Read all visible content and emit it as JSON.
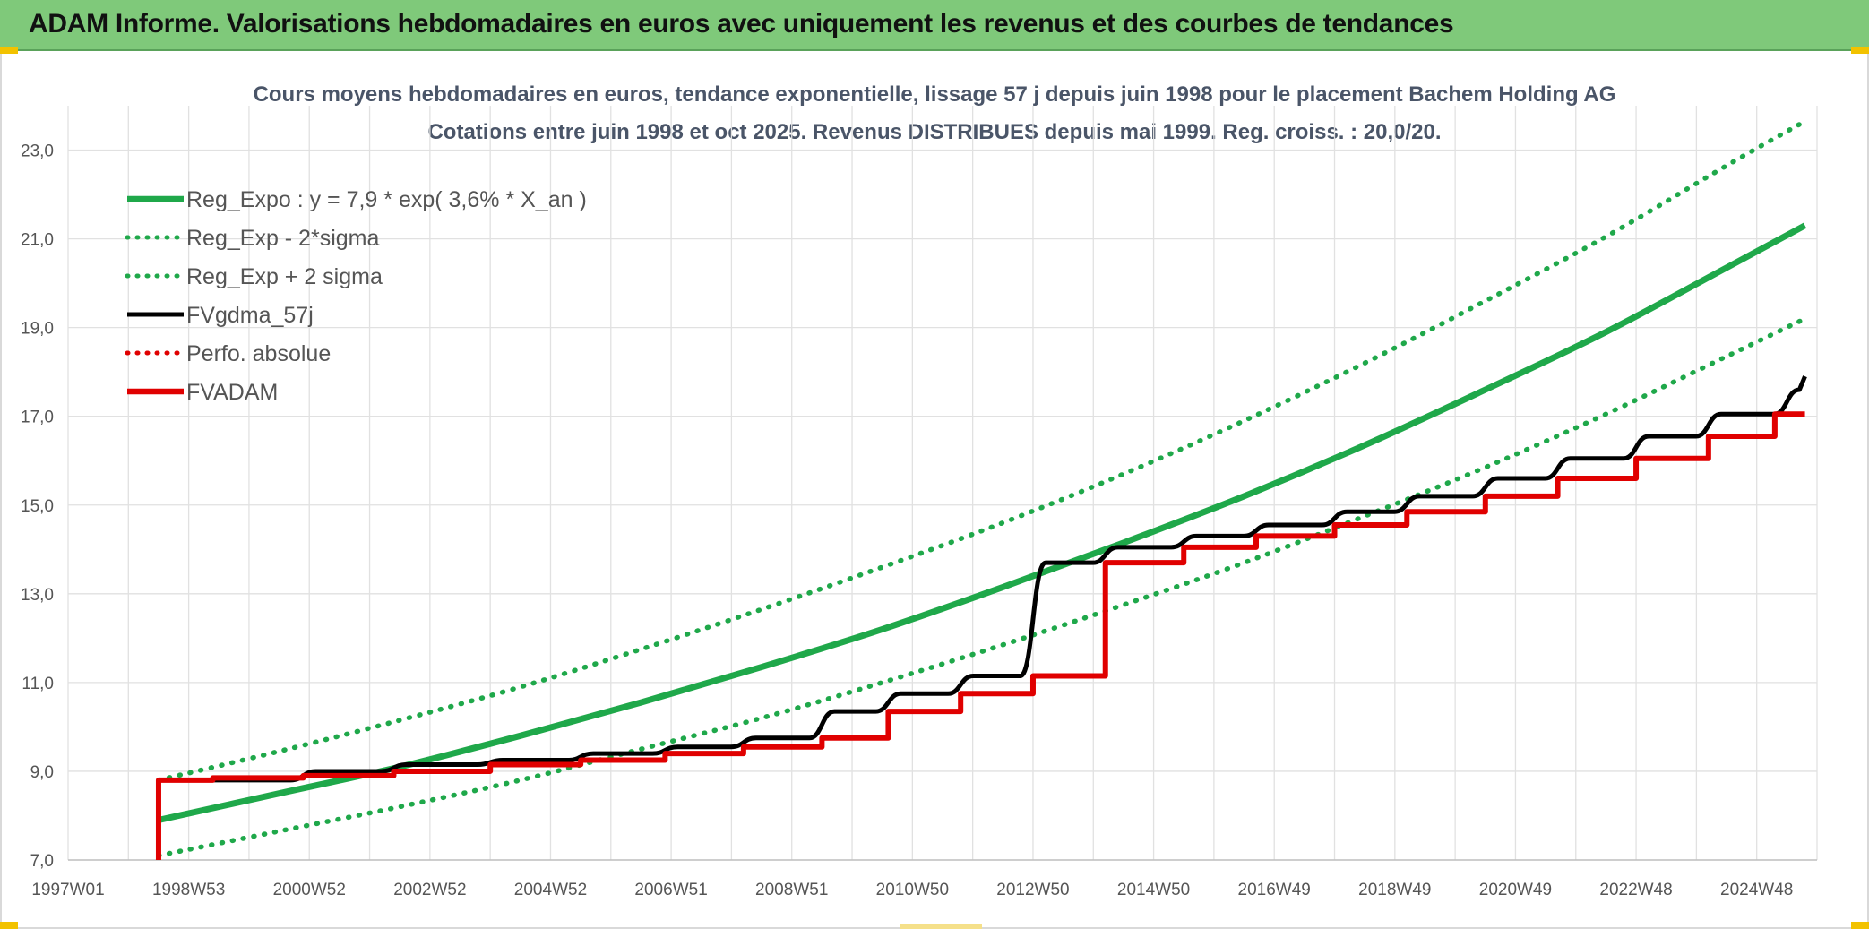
{
  "banner": {
    "title": "ADAM Informe. Valorisations hebdomadaires en euros avec uniquement les revenus et des courbes de tendances"
  },
  "chart_data": {
    "type": "line",
    "title": "Cours moyens hebdomadaires en euros, tendance exponentielle, lissage 57 j depuis juin 1998 pour le placement Bachem Holding AG",
    "subtitle": "Cotations entre juin 1998 et oct 2025. Revenus DISTRIBUES depuis mai 1999. Reg. croiss. : 20,0/20.",
    "xlabel": "",
    "ylabel": "",
    "x_range": [
      1997.0,
      2026.0
    ],
    "ylim": [
      7.0,
      24.0
    ],
    "y_ticks": [
      "7,0",
      "9,0",
      "11,0",
      "13,0",
      "15,0",
      "17,0",
      "19,0",
      "21,0",
      "23,0"
    ],
    "x_ticks": [
      {
        "label": "1997W01",
        "x": 1997.0
      },
      {
        "label": "1998W53",
        "x": 1999.0
      },
      {
        "label": "2000W52",
        "x": 2001.0
      },
      {
        "label": "2002W52",
        "x": 2003.0
      },
      {
        "label": "2004W52",
        "x": 2005.0
      },
      {
        "label": "2006W51",
        "x": 2007.0
      },
      {
        "label": "2008W51",
        "x": 2009.0
      },
      {
        "label": "2010W50",
        "x": 2011.0
      },
      {
        "label": "2012W50",
        "x": 2013.0
      },
      {
        "label": "2014W50",
        "x": 2015.0
      },
      {
        "label": "2016W49",
        "x": 2017.0
      },
      {
        "label": "2018W49",
        "x": 2019.0
      },
      {
        "label": "2020W49",
        "x": 2021.0
      },
      {
        "label": "2022W48",
        "x": 2023.0
      },
      {
        "label": "2024W48",
        "x": 2025.0
      }
    ],
    "grid": true,
    "legend_position": "top-left",
    "series": [
      {
        "name": "Reg_Expo : y = 7,9 * exp( 3,6% *  X_an )",
        "color": "#1fa84a",
        "style": "solid",
        "x": [
          1998.5,
          2000.5,
          2002.5,
          2004.5,
          2006.5,
          2008.5,
          2010.5,
          2012.5,
          2014.5,
          2016.5,
          2018.5,
          2020.5,
          2022.5,
          2024.5,
          2025.8
        ],
        "y": [
          7.9,
          8.5,
          9.1,
          9.8,
          10.55,
          11.35,
          12.2,
          13.15,
          14.15,
          15.2,
          16.35,
          17.6,
          18.9,
          20.35,
          21.3
        ]
      },
      {
        "name": "Reg_Exp - 2*sigma",
        "color": "#1fa84a",
        "style": "dotted",
        "x": [
          1998.5,
          2000.5,
          2002.5,
          2004.5,
          2006.5,
          2008.5,
          2010.5,
          2012.5,
          2014.5,
          2016.5,
          2018.5,
          2020.5,
          2022.5,
          2024.5,
          2025.8
        ],
        "y": [
          7.1,
          7.65,
          8.2,
          8.8,
          9.5,
          10.2,
          11.0,
          11.85,
          12.75,
          13.7,
          14.75,
          15.85,
          17.05,
          18.35,
          19.2
        ]
      },
      {
        "name": "Reg_Exp + 2 sigma",
        "color": "#1fa84a",
        "style": "dotted",
        "x": [
          1998.5,
          2000.5,
          2002.5,
          2004.5,
          2006.5,
          2008.5,
          2010.5,
          2012.5,
          2014.5,
          2016.5,
          2018.5,
          2020.5,
          2022.5,
          2024.5,
          2025.8
        ],
        "y": [
          8.8,
          9.45,
          10.15,
          10.9,
          11.75,
          12.65,
          13.6,
          14.6,
          15.7,
          16.9,
          18.2,
          19.6,
          21.05,
          22.65,
          23.65
        ]
      },
      {
        "name": "FVgdma_57j",
        "color": "#000000",
        "style": "smooth",
        "x": [
          1998.5,
          2000.9,
          2002.4,
          2004.0,
          2005.5,
          2006.9,
          2008.2,
          2009.5,
          2010.6,
          2011.8,
          2013.0,
          2014.2,
          2015.5,
          2016.7,
          2018.0,
          2019.2,
          2020.5,
          2021.7,
          2023.0,
          2024.2,
          2025.5
        ],
        "y": [
          8.8,
          9.0,
          9.15,
          9.25,
          9.4,
          9.55,
          9.75,
          10.35,
          10.75,
          11.15,
          13.7,
          14.05,
          14.3,
          14.55,
          14.85,
          15.2,
          15.6,
          16.05,
          16.55,
          17.05,
          17.6
        ]
      },
      {
        "name": "Perfo. absolue",
        "color": "#e00000",
        "style": "dotted",
        "x": [],
        "y": []
      },
      {
        "name": "FVADAM",
        "color": "#e00000",
        "style": "step",
        "x": [
          1998.5,
          1999.4,
          2000.9,
          2002.4,
          2004.0,
          2005.5,
          2006.9,
          2008.2,
          2009.5,
          2010.6,
          2011.8,
          2013.0,
          2014.2,
          2015.5,
          2016.7,
          2018.0,
          2019.2,
          2020.5,
          2021.7,
          2023.0,
          2024.2,
          2025.3
        ],
        "y": [
          8.8,
          8.85,
          8.9,
          9.0,
          9.15,
          9.25,
          9.4,
          9.55,
          9.75,
          10.35,
          10.75,
          11.15,
          13.7,
          14.05,
          14.3,
          14.55,
          14.85,
          15.2,
          15.6,
          16.05,
          16.55,
          17.05
        ]
      }
    ]
  }
}
